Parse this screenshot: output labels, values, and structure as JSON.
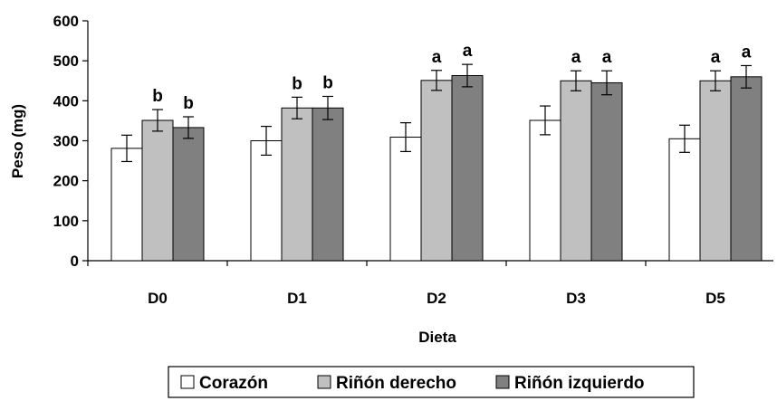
{
  "chart_data": {
    "type": "bar",
    "xlabel": "Dieta",
    "ylabel": "Peso (mg)",
    "ylim": [
      0,
      600
    ],
    "yticks": [
      0,
      100,
      200,
      300,
      400,
      500,
      600
    ],
    "grid": false,
    "legend_position": "bottom",
    "categories": [
      "D0",
      "D1",
      "D2",
      "D3",
      "D5"
    ],
    "series": [
      {
        "name": "Corazón",
        "color": "#ffffff",
        "values": [
          281,
          300,
          309,
          351,
          305
        ],
        "errors": [
          33,
          36,
          36,
          36,
          34
        ],
        "labels": [
          "",
          "",
          "",
          "",
          ""
        ]
      },
      {
        "name": "Riñón derecho",
        "color": "#c0c0c0",
        "values": [
          351,
          382,
          451,
          450,
          450
        ],
        "errors": [
          27,
          27,
          25,
          25,
          25
        ],
        "labels": [
          "b",
          "b",
          "a",
          "a",
          "a"
        ]
      },
      {
        "name": "Riñón izquierdo",
        "color": "#808080",
        "values": [
          333,
          382,
          463,
          445,
          460
        ],
        "errors": [
          27,
          29,
          28,
          30,
          28
        ],
        "labels": [
          "b",
          "b",
          "a",
          "a",
          "a"
        ]
      }
    ]
  }
}
